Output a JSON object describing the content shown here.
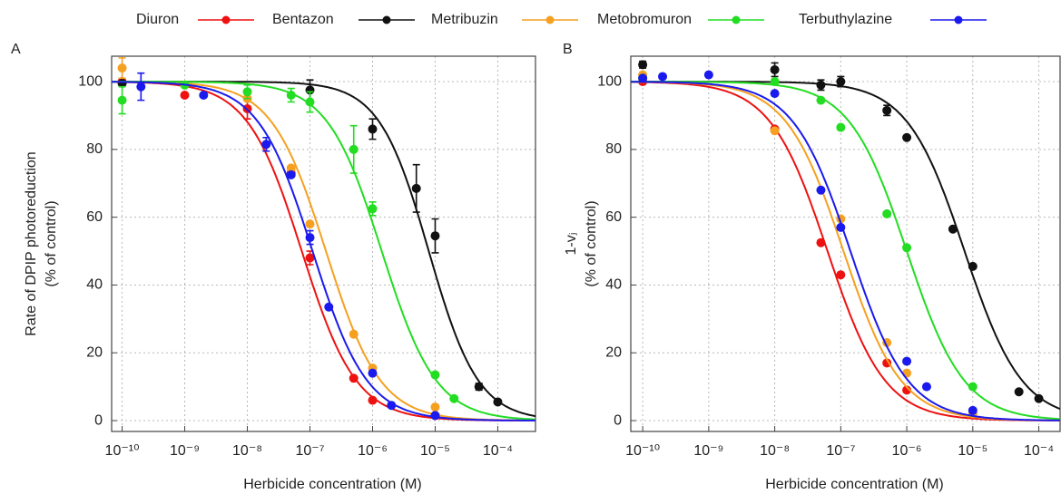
{
  "legend": {
    "names": [
      "Diuron",
      "Bentazon",
      "Metribuzin",
      "Metobromuron",
      "Terbuthylazine"
    ],
    "colors": [
      "#ee1111",
      "#111111",
      "#f5a020",
      "#22dd22",
      "#1a1aee"
    ]
  },
  "chart_data": [
    {
      "type": "scatter",
      "panel": "A",
      "xlabel": "Herbicide concentration (M)",
      "ylabel": [
        "Rate of DPIP photoreduction",
        "(% of control)"
      ],
      "log_x": true,
      "grid": true,
      "xlim": [
        6.8e-11,
        0.0004
      ],
      "xticks": [
        {
          "value": 1e-10,
          "label": "10⁻¹⁰"
        },
        {
          "value": 1e-09,
          "label": "10⁻⁹"
        },
        {
          "value": 1e-08,
          "label": "10⁻⁸"
        },
        {
          "value": 1e-07,
          "label": "10⁻⁷"
        },
        {
          "value": 1e-06,
          "label": "10⁻⁶"
        },
        {
          "value": 1e-05,
          "label": "10⁻⁵"
        },
        {
          "value": 0.0001,
          "label": "10⁻⁴"
        }
      ],
      "ylim": [
        -3.2,
        107.5
      ],
      "yticks": [
        0,
        20,
        40,
        60,
        80,
        100
      ],
      "series": [
        {
          "x": [
            1e-10,
            1e-09,
            1e-08,
            5e-08,
            1e-07,
            5e-07,
            1e-06,
            1e-05
          ],
          "values": [
            100,
            96,
            92,
            73,
            48,
            12.5,
            6,
            1.5
          ],
          "errors": [
            null,
            null,
            3,
            null,
            2,
            null,
            null,
            null
          ],
          "ic50": 7.4e-08,
          "hill": 1
        },
        {
          "x": [
            1e-10,
            1e-07,
            1e-06,
            5e-06,
            1e-05,
            5e-05,
            0.0001
          ],
          "values": [
            99.5,
            97.5,
            86,
            68.5,
            54.5,
            10,
            5.5
          ],
          "errors": [
            null,
            3,
            3,
            7,
            5,
            1,
            null
          ],
          "ic50": 7.9e-06,
          "hill": 1.1
        },
        {
          "x": [
            1e-10,
            1e-09,
            1e-08,
            5e-08,
            1e-07,
            5e-07,
            1e-06,
            1e-05
          ],
          "values": [
            104,
            99,
            95,
            74.5,
            58,
            25.5,
            15.5,
            4
          ],
          "errors": [
            3,
            null,
            null,
            null,
            null,
            null,
            null,
            null
          ],
          "ic50": 1.8e-07,
          "hill": 1
        },
        {
          "x": [
            1e-10,
            1e-09,
            1e-08,
            5e-08,
            1e-07,
            5e-07,
            1e-06,
            1e-05,
            2e-05
          ],
          "values": [
            94.5,
            99,
            97,
            96,
            94,
            80,
            62.5,
            13.5,
            6.5
          ],
          "errors": [
            4,
            null,
            2,
            2,
            3,
            7,
            2,
            null,
            null
          ],
          "ic50": 1.4e-06,
          "hill": 1
        },
        {
          "x": [
            2e-10,
            2e-09,
            2e-08,
            5e-08,
            1e-07,
            2e-07,
            1e-06,
            2e-06,
            1e-05
          ],
          "values": [
            98.5,
            96,
            81.5,
            72.5,
            54,
            33.5,
            14,
            4.5,
            1.5
          ],
          "errors": [
            4,
            null,
            2,
            null,
            2,
            null,
            null,
            null,
            null
          ],
          "ic50": 1.1e-07,
          "hill": 1
        }
      ]
    },
    {
      "type": "scatter",
      "panel": "B",
      "xlabel": "Herbicide concentration (M)",
      "ylabel": [
        "1-vⱼ",
        "(% of control)"
      ],
      "log_x": true,
      "grid": true,
      "xlim": [
        6.6e-11,
        0.00021
      ],
      "xticks": [
        {
          "value": 1e-10,
          "label": "10⁻¹⁰"
        },
        {
          "value": 1e-09,
          "label": "10⁻⁹"
        },
        {
          "value": 1e-08,
          "label": "10⁻⁸"
        },
        {
          "value": 1e-07,
          "label": "10⁻⁷"
        },
        {
          "value": 1e-06,
          "label": "10⁻⁶"
        },
        {
          "value": 1e-05,
          "label": "10⁻⁵"
        },
        {
          "value": 0.0001,
          "label": "10⁻⁴"
        }
      ],
      "ylim": [
        -3.2,
        107.5
      ],
      "yticks": [
        0,
        20,
        40,
        60,
        80,
        100
      ],
      "series": [
        {
          "x": [
            1e-10,
            1e-08,
            5e-08,
            1e-07,
            5e-07,
            1e-06
          ],
          "values": [
            100,
            86,
            52.5,
            43,
            17,
            9
          ],
          "errors": [
            null,
            null,
            null,
            null,
            null,
            null
          ],
          "ic50": 6.3e-08,
          "hill": 1
        },
        {
          "x": [
            1e-10,
            1e-08,
            5e-08,
            1e-07,
            5e-07,
            1e-06,
            5e-06,
            1e-05,
            5e-05,
            0.0001
          ],
          "values": [
            105,
            103.5,
            99,
            100,
            91.5,
            83.5,
            56.5,
            45.5,
            8.5,
            6.5
          ],
          "errors": [
            1,
            2,
            1.5,
            1.5,
            1.5,
            null,
            null,
            null,
            null,
            null
          ],
          "ic50": 7.5e-06,
          "hill": 1
        },
        {
          "x": [
            1e-10,
            1e-08,
            1e-07,
            5e-07,
            1e-06,
            1e-05
          ],
          "values": [
            102,
            85.5,
            59.5,
            23,
            14,
            2
          ],
          "errors": [
            null,
            null,
            null,
            null,
            null,
            null
          ],
          "ic50": 1.1e-07,
          "hill": 1
        },
        {
          "x": [
            1e-10,
            1e-08,
            5e-08,
            1e-07,
            5e-07,
            1e-06,
            1e-05
          ],
          "values": [
            101,
            100,
            94.5,
            86.5,
            61,
            51,
            10
          ],
          "errors": [
            null,
            null,
            null,
            null,
            null,
            null,
            null
          ],
          "ic50": 1e-06,
          "hill": 1
        },
        {
          "x": [
            1e-10,
            2e-10,
            1e-09,
            1e-08,
            5e-08,
            1e-07,
            1e-06,
            2e-06,
            1e-05
          ],
          "values": [
            101,
            101.5,
            102,
            96.5,
            68,
            57,
            17.5,
            10,
            3
          ],
          "errors": [
            null,
            null,
            null,
            null,
            null,
            null,
            null,
            null,
            null
          ],
          "ic50": 1.4e-07,
          "hill": 1
        }
      ]
    }
  ]
}
